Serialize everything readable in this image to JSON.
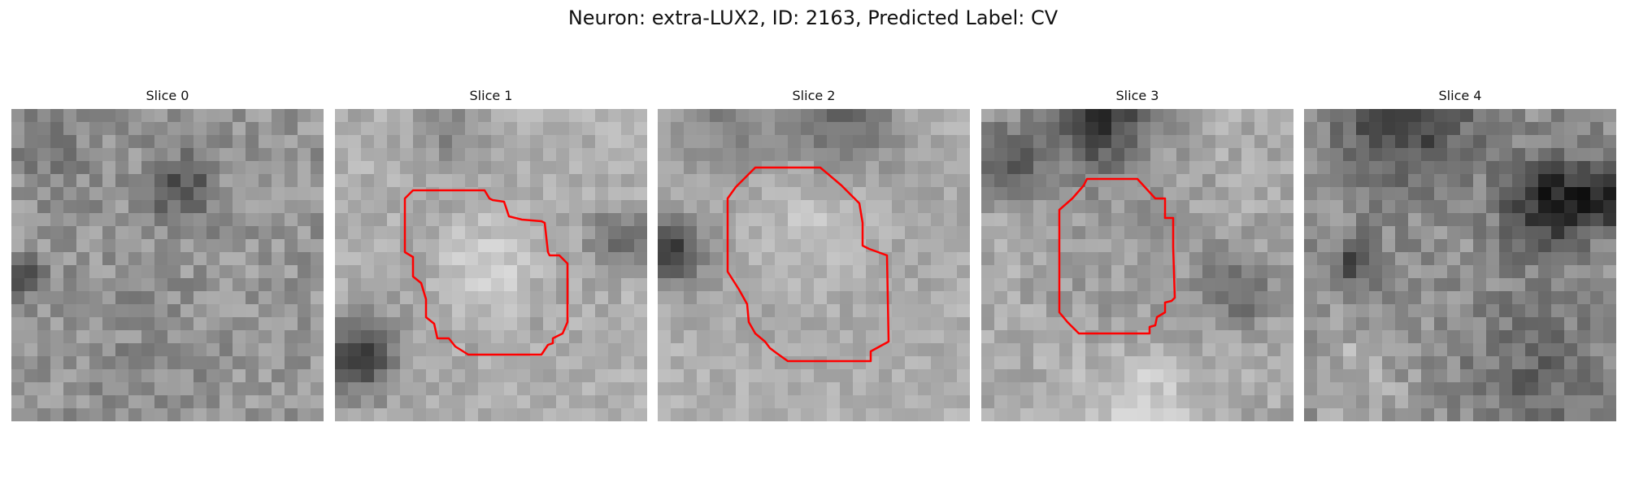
{
  "figure": {
    "title": "Neuron: extra-LUX2, ID: 2163, Predicted Label: CV"
  },
  "panels": [
    {
      "title": "Slice 0",
      "has_contour": false
    },
    {
      "title": "Slice 1",
      "has_contour": true
    },
    {
      "title": "Slice 2",
      "has_contour": true
    },
    {
      "title": "Slice 3",
      "has_contour": true
    },
    {
      "title": "Slice 4",
      "has_contour": false
    }
  ],
  "colors": {
    "contour": "#ff0000",
    "background": "#ffffff"
  }
}
